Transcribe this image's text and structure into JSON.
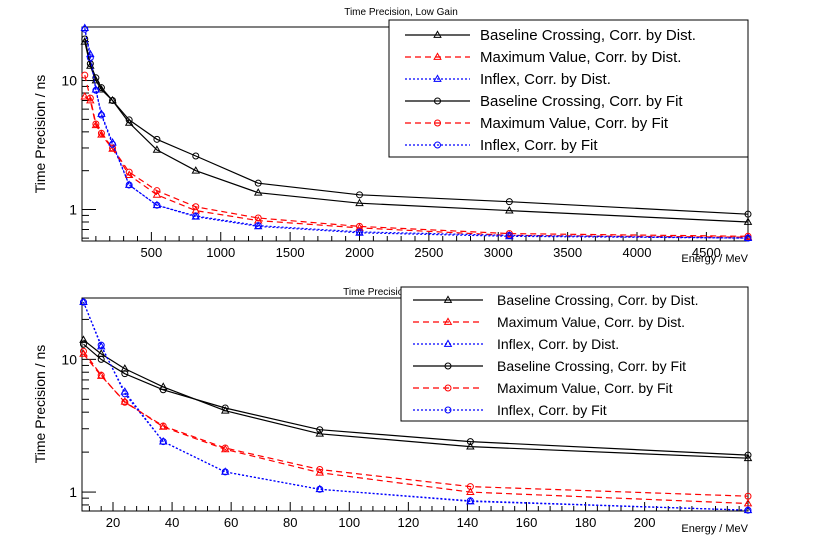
{
  "chart_data": [
    {
      "type": "line",
      "title": "Time Precision, Low Gain",
      "xlabel": "Energy / MeV",
      "ylabel": "Time Precision / ns",
      "xlim": [
        0,
        4800
      ],
      "ylim": [
        0.57,
        26
      ],
      "yscale": "log",
      "grid": false,
      "legend_position": "top-right",
      "x_ticks": [
        500,
        1000,
        1500,
        2000,
        2500,
        3000,
        3500,
        4000,
        4500
      ],
      "x_tick_labels": [
        "500",
        "1000",
        "1500",
        "2000",
        "2500",
        "3000",
        "3500",
        "4000",
        "4500"
      ],
      "y_ticks": [
        1,
        10
      ],
      "y_tick_labels": [
        "1",
        "10"
      ],
      "x": [
        20,
        60,
        100,
        140,
        220,
        340,
        540,
        820,
        1270,
        2000,
        3080,
        4800
      ],
      "series": [
        {
          "name": "Baseline Crossing, Corr. by Dist.",
          "color": "#000000",
          "dash": "solid",
          "marker": "triangle",
          "values": [
            20,
            13,
            10,
            8.5,
            7,
            4.7,
            2.9,
            2.0,
            1.35,
            1.12,
            0.98,
            0.8
          ]
        },
        {
          "name": "Maximum Value, Corr. by Dist.",
          "color": "#ff0000",
          "dash": "dashed",
          "marker": "triangle",
          "values": [
            7.5,
            7,
            4.5,
            3.8,
            2.95,
            1.85,
            1.3,
            0.98,
            0.82,
            0.72,
            0.63,
            0.61
          ]
        },
        {
          "name": "Inflex, Corr. by Dist.",
          "color": "#0000ff",
          "dash": "dotted",
          "marker": "triangle",
          "values": [
            25.5,
            16,
            8.5,
            5.5,
            3.3,
            1.55,
            1.08,
            0.88,
            0.74,
            0.66,
            0.62,
            0.6
          ]
        },
        {
          "name": "Baseline Crossing, Corr. by Fit",
          "color": "#000000",
          "dash": "solid",
          "marker": "circle",
          "values": [
            21,
            13.5,
            10.5,
            8.8,
            7.0,
            4.95,
            3.5,
            2.6,
            1.6,
            1.3,
            1.15,
            0.92
          ]
        },
        {
          "name": "Maximum Value, Corr. by Fit",
          "color": "#ff0000",
          "dash": "dashed",
          "marker": "circle",
          "values": [
            11,
            7.3,
            4.6,
            3.9,
            3.0,
            1.95,
            1.4,
            1.05,
            0.86,
            0.74,
            0.65,
            0.62
          ]
        },
        {
          "name": "Inflex, Corr. by Fit",
          "color": "#0000ff",
          "dash": "dotted",
          "marker": "circle",
          "values": [
            25,
            15,
            8.4,
            5.4,
            3.2,
            1.55,
            1.08,
            0.89,
            0.75,
            0.67,
            0.63,
            0.6
          ]
        }
      ]
    },
    {
      "type": "line",
      "title": "Time Precision, High Gain",
      "xlabel": "Energy / MeV",
      "ylabel": "Time Precision / ns",
      "xlim": [
        9.5,
        235
      ],
      "ylim": [
        0.72,
        29
      ],
      "yscale": "log",
      "grid": false,
      "legend_position": "top-right",
      "x_ticks": [
        20,
        40,
        60,
        80,
        100,
        120,
        140,
        160,
        180,
        200
      ],
      "x_tick_labels": [
        "20",
        "40",
        "60",
        "80",
        "100",
        "120",
        "140",
        "160",
        "180",
        "200"
      ],
      "y_ticks": [
        1,
        10
      ],
      "y_tick_labels": [
        "1",
        "10"
      ],
      "x": [
        10,
        16,
        24,
        37,
        58,
        90,
        141,
        235
      ],
      "series": [
        {
          "name": "Baseline Crossing, Corr. by Dist.",
          "color": "#000000",
          "dash": "solid",
          "marker": "triangle",
          "values": [
            14,
            11,
            8.5,
            6.2,
            4.1,
            2.75,
            2.2,
            1.8
          ]
        },
        {
          "name": "Maximum Value, Corr. by Dist.",
          "color": "#ff0000",
          "dash": "dashed",
          "marker": "triangle",
          "values": [
            11,
            7.5,
            4.8,
            3.1,
            2.1,
            1.4,
            1.0,
            0.82
          ]
        },
        {
          "name": "Inflex, Corr. by Dist.",
          "color": "#0000ff",
          "dash": "dotted",
          "marker": "triangle",
          "values": [
            27,
            12.5,
            5.7,
            2.4,
            1.42,
            1.05,
            0.85,
            0.73
          ]
        },
        {
          "name": "Baseline Crossing, Corr. by Fit",
          "color": "#000000",
          "dash": "solid",
          "marker": "circle",
          "values": [
            13,
            10,
            7.8,
            5.9,
            4.3,
            2.95,
            2.4,
            1.9
          ]
        },
        {
          "name": "Maximum Value, Corr. by Fit",
          "color": "#ff0000",
          "dash": "dashed",
          "marker": "circle",
          "values": [
            11.5,
            7.6,
            4.75,
            3.15,
            2.15,
            1.48,
            1.1,
            0.93
          ]
        },
        {
          "name": "Inflex, Corr. by Fit",
          "color": "#0000ff",
          "dash": "dotted",
          "marker": "circle",
          "values": [
            27,
            12.8,
            5.5,
            2.4,
            1.42,
            1.05,
            0.86,
            0.73
          ]
        }
      ]
    }
  ]
}
